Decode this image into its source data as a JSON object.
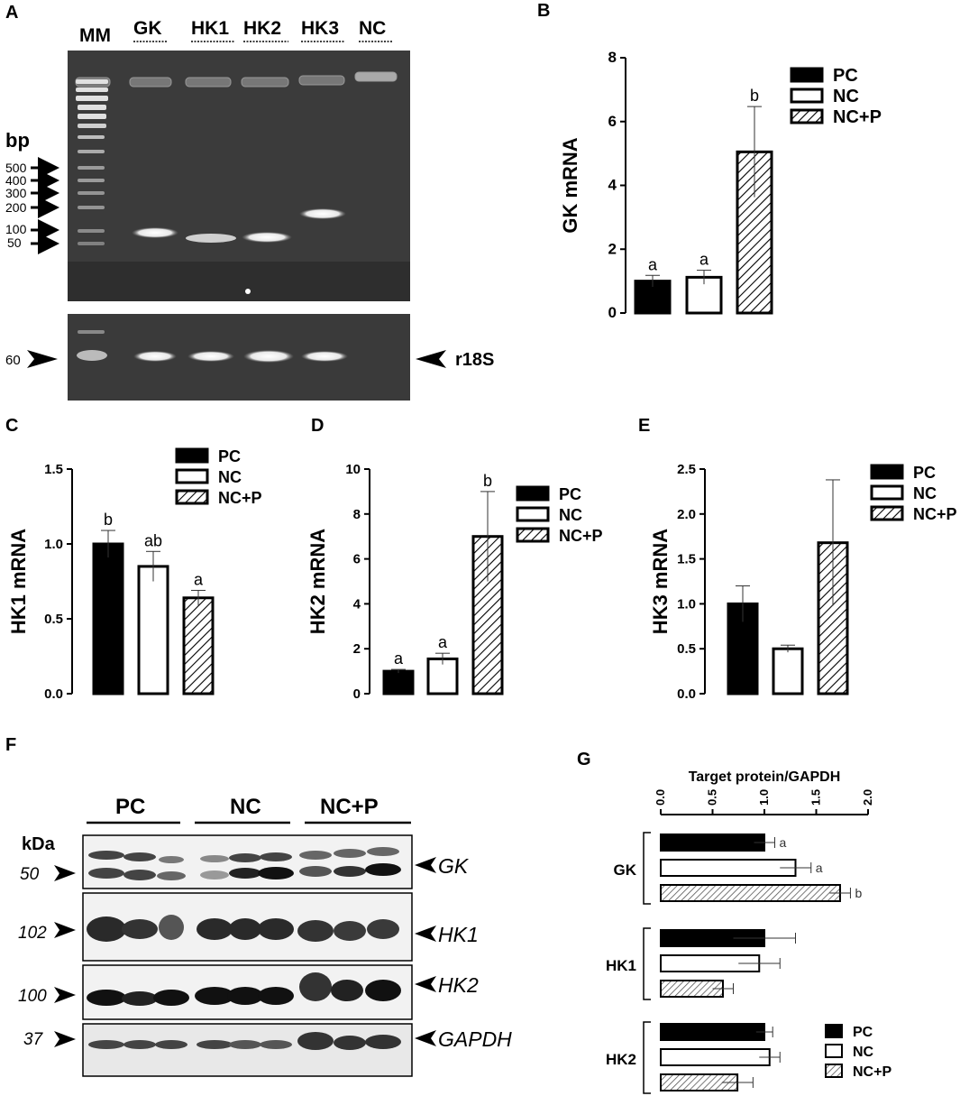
{
  "panels": {
    "A": {
      "letter": "A",
      "lane_labels": [
        "MM",
        "GK",
        "HK1",
        "HK2",
        "HK3",
        "NC"
      ],
      "bp_title": "bp",
      "ladder": [
        "500",
        "400",
        "300",
        "200",
        "100",
        "50"
      ],
      "loading_marker": "60",
      "loading_label": "r18S"
    },
    "B": {
      "letter": "B"
    },
    "C": {
      "letter": "C"
    },
    "D": {
      "letter": "D"
    },
    "E": {
      "letter": "E"
    },
    "F": {
      "letter": "F",
      "groups": [
        "PC",
        "NC",
        "NC+P"
      ],
      "kda_title": "kDa",
      "rows": [
        {
          "kda": "50",
          "target": "GK"
        },
        {
          "kda": "102",
          "target": "HK1"
        },
        {
          "kda": "100",
          "target": "HK2"
        },
        {
          "kda": "37",
          "target": "GAPDH"
        }
      ]
    },
    "G": {
      "letter": "G"
    }
  },
  "colors": {
    "pc": "#000000",
    "nc": "#ffffff",
    "ncp_hatch": "#000000",
    "gel_bg": "#3a3a3a",
    "blot_bg": "#f2f2f2"
  },
  "chart_data": [
    {
      "id": "B",
      "type": "bar",
      "ylabel": "GK mRNA",
      "ylim": [
        0,
        8
      ],
      "ticks": [
        0,
        2,
        4,
        6,
        8
      ],
      "categories": [
        "PC",
        "NC",
        "NC+P"
      ],
      "values": [
        1.0,
        1.12,
        5.05
      ],
      "errors": [
        0.18,
        0.22,
        1.42
      ],
      "letters": [
        "a",
        "a",
        "b"
      ],
      "legend": [
        "PC",
        "NC",
        "NC+P"
      ],
      "legend_position": "top-right"
    },
    {
      "id": "C",
      "type": "bar",
      "ylabel": "HK1 mRNA",
      "ylim": [
        0,
        1.5
      ],
      "ticks": [
        "0.0",
        "0.5",
        "1.0",
        "1.5"
      ],
      "categories": [
        "PC",
        "NC",
        "NC+P"
      ],
      "values": [
        1.0,
        0.85,
        0.64
      ],
      "errors": [
        0.09,
        0.1,
        0.05
      ],
      "letters": [
        "b",
        "ab",
        "a"
      ],
      "legend": [
        "PC",
        "NC",
        "NC+P"
      ],
      "legend_position": "top-right"
    },
    {
      "id": "D",
      "type": "bar",
      "ylabel": "HK2 mRNA",
      "ylim": [
        0,
        10
      ],
      "ticks": [
        0,
        2,
        4,
        6,
        8,
        10
      ],
      "categories": [
        "PC",
        "NC",
        "NC+P"
      ],
      "values": [
        1.0,
        1.55,
        7.0
      ],
      "errors": [
        0.08,
        0.25,
        2.0
      ],
      "letters": [
        "a",
        "a",
        "b"
      ],
      "legend": [
        "PC",
        "NC",
        "NC+P"
      ],
      "legend_position": "right"
    },
    {
      "id": "E",
      "type": "bar",
      "ylabel": "HK3 mRNA",
      "ylim": [
        0,
        2.5
      ],
      "ticks": [
        "0.0",
        "0.5",
        "1.0",
        "1.5",
        "2.0",
        "2.5"
      ],
      "categories": [
        "PC",
        "NC",
        "NC+P"
      ],
      "values": [
        1.0,
        0.5,
        1.68
      ],
      "errors": [
        0.2,
        0.04,
        0.7
      ],
      "letters": [
        "",
        "",
        ""
      ],
      "legend": [
        "PC",
        "NC",
        "NC+P"
      ],
      "legend_position": "top-right"
    },
    {
      "id": "G",
      "type": "bar",
      "orientation": "horizontal",
      "xlabel": "Target protein/GAPDH",
      "xlim": [
        0,
        2
      ],
      "ticks": [
        "0.0",
        "0.5",
        "1.0",
        "1.5",
        "2.0"
      ],
      "groups": [
        {
          "name": "GK",
          "values": [
            1.0,
            1.3,
            1.73
          ],
          "errors": [
            0.1,
            0.15,
            0.1
          ],
          "letters": [
            "a",
            "a",
            "b"
          ]
        },
        {
          "name": "HK1",
          "values": [
            1.0,
            0.95,
            0.6
          ],
          "errors": [
            0.3,
            0.2,
            0.1
          ],
          "letters": [
            "",
            "",
            ""
          ]
        },
        {
          "name": "HK2",
          "values": [
            1.0,
            1.05,
            0.74
          ],
          "errors": [
            0.08,
            0.1,
            0.15
          ],
          "letters": [
            "",
            "",
            ""
          ]
        }
      ],
      "series": [
        "PC",
        "NC",
        "NC+P"
      ],
      "legend": [
        "PC",
        "NC",
        "NC+P"
      ],
      "legend_position": "bottom-right"
    }
  ]
}
